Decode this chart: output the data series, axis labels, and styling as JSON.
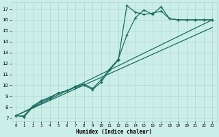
{
  "xlabel": "Humidex (Indice chaleur)",
  "bg_color": "#cceee8",
  "line_color": "#1a6b60",
  "grid_color": "#aad8d0",
  "xlim": [
    -0.5,
    23.5
  ],
  "ylim": [
    6.7,
    17.6
  ],
  "xticks": [
    0,
    1,
    2,
    3,
    4,
    5,
    6,
    7,
    8,
    9,
    10,
    11,
    12,
    13,
    14,
    15,
    16,
    17,
    18,
    19,
    20,
    21,
    22,
    23
  ],
  "yticks": [
    7,
    8,
    9,
    10,
    11,
    12,
    13,
    14,
    15,
    16,
    17
  ],
  "line1_x": [
    0,
    1,
    2,
    3,
    4,
    5,
    6,
    7,
    8,
    9,
    10,
    11,
    12,
    13,
    14,
    15,
    16,
    17,
    18,
    19,
    20,
    21,
    22,
    23
  ],
  "line1_y": [
    7.2,
    7.1,
    8.0,
    8.5,
    8.8,
    9.3,
    9.5,
    9.8,
    10.0,
    9.6,
    10.3,
    11.4,
    12.3,
    17.3,
    16.7,
    16.5,
    16.6,
    16.8,
    16.1,
    16.0,
    16.0,
    16.0,
    16.0,
    16.0
  ],
  "line2_x": [
    0,
    1,
    2,
    3,
    4,
    5,
    6,
    7,
    8,
    9,
    10,
    11,
    12,
    13,
    14,
    15,
    16,
    17,
    18,
    19,
    20,
    21,
    22,
    23
  ],
  "line2_y": [
    7.2,
    7.2,
    8.1,
    8.6,
    8.9,
    9.3,
    9.5,
    9.9,
    10.1,
    9.7,
    10.5,
    11.5,
    12.4,
    14.6,
    16.2,
    16.9,
    16.5,
    17.2,
    16.1,
    16.0,
    16.0,
    16.0,
    16.0,
    16.0
  ],
  "line3_x": [
    0,
    23
  ],
  "line3_y": [
    7.2,
    16.0
  ],
  "line4_x": [
    0,
    23
  ],
  "line4_y": [
    7.2,
    15.3
  ]
}
